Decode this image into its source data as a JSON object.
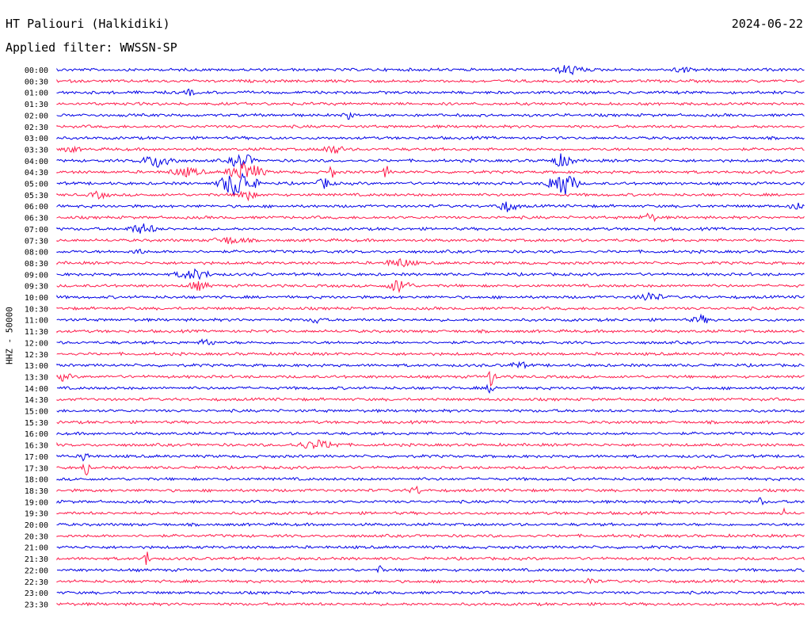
{
  "header": {
    "station": "HT Paliouri (Halkidiki)",
    "date": "2024-06-22",
    "filter": "Applied filter: WWSSN-SP"
  },
  "axis": {
    "ylabel": "HHZ - 50000"
  },
  "colors": {
    "blue": "#0000e6",
    "red": "#ff1a4a",
    "text": "#000000"
  },
  "rows": [
    {
      "time": "00:00",
      "color": "blue"
    },
    {
      "time": "00:30",
      "color": "red"
    },
    {
      "time": "01:00",
      "color": "blue"
    },
    {
      "time": "01:30",
      "color": "red"
    },
    {
      "time": "02:00",
      "color": "blue"
    },
    {
      "time": "02:30",
      "color": "red"
    },
    {
      "time": "03:00",
      "color": "blue"
    },
    {
      "time": "03:30",
      "color": "red"
    },
    {
      "time": "04:00",
      "color": "blue"
    },
    {
      "time": "04:30",
      "color": "red"
    },
    {
      "time": "05:00",
      "color": "blue"
    },
    {
      "time": "05:30",
      "color": "red"
    },
    {
      "time": "06:00",
      "color": "blue"
    },
    {
      "time": "06:30",
      "color": "red"
    },
    {
      "time": "07:00",
      "color": "blue"
    },
    {
      "time": "07:30",
      "color": "red"
    },
    {
      "time": "08:00",
      "color": "blue"
    },
    {
      "time": "08:30",
      "color": "red"
    },
    {
      "time": "09:00",
      "color": "blue"
    },
    {
      "time": "09:30",
      "color": "red"
    },
    {
      "time": "10:00",
      "color": "blue"
    },
    {
      "time": "10:30",
      "color": "red"
    },
    {
      "time": "11:00",
      "color": "blue"
    },
    {
      "time": "11:30",
      "color": "red"
    },
    {
      "time": "12:00",
      "color": "blue"
    },
    {
      "time": "12:30",
      "color": "red"
    },
    {
      "time": "13:00",
      "color": "blue"
    },
    {
      "time": "13:30",
      "color": "red"
    },
    {
      "time": "14:00",
      "color": "blue"
    },
    {
      "time": "14:30",
      "color": "red"
    },
    {
      "time": "15:00",
      "color": "blue"
    },
    {
      "time": "15:30",
      "color": "red"
    },
    {
      "time": "16:00",
      "color": "blue"
    },
    {
      "time": "16:30",
      "color": "red"
    },
    {
      "time": "17:00",
      "color": "blue"
    },
    {
      "time": "17:30",
      "color": "red"
    },
    {
      "time": "18:00",
      "color": "blue"
    },
    {
      "time": "18:30",
      "color": "red"
    },
    {
      "time": "19:00",
      "color": "blue"
    },
    {
      "time": "19:30",
      "color": "red"
    },
    {
      "time": "20:00",
      "color": "blue"
    },
    {
      "time": "20:30",
      "color": "red"
    },
    {
      "time": "21:00",
      "color": "blue"
    },
    {
      "time": "21:30",
      "color": "red"
    },
    {
      "time": "22:00",
      "color": "blue"
    },
    {
      "time": "22:30",
      "color": "red"
    },
    {
      "time": "23:00",
      "color": "blue"
    },
    {
      "time": "23:30",
      "color": "red"
    }
  ]
}
